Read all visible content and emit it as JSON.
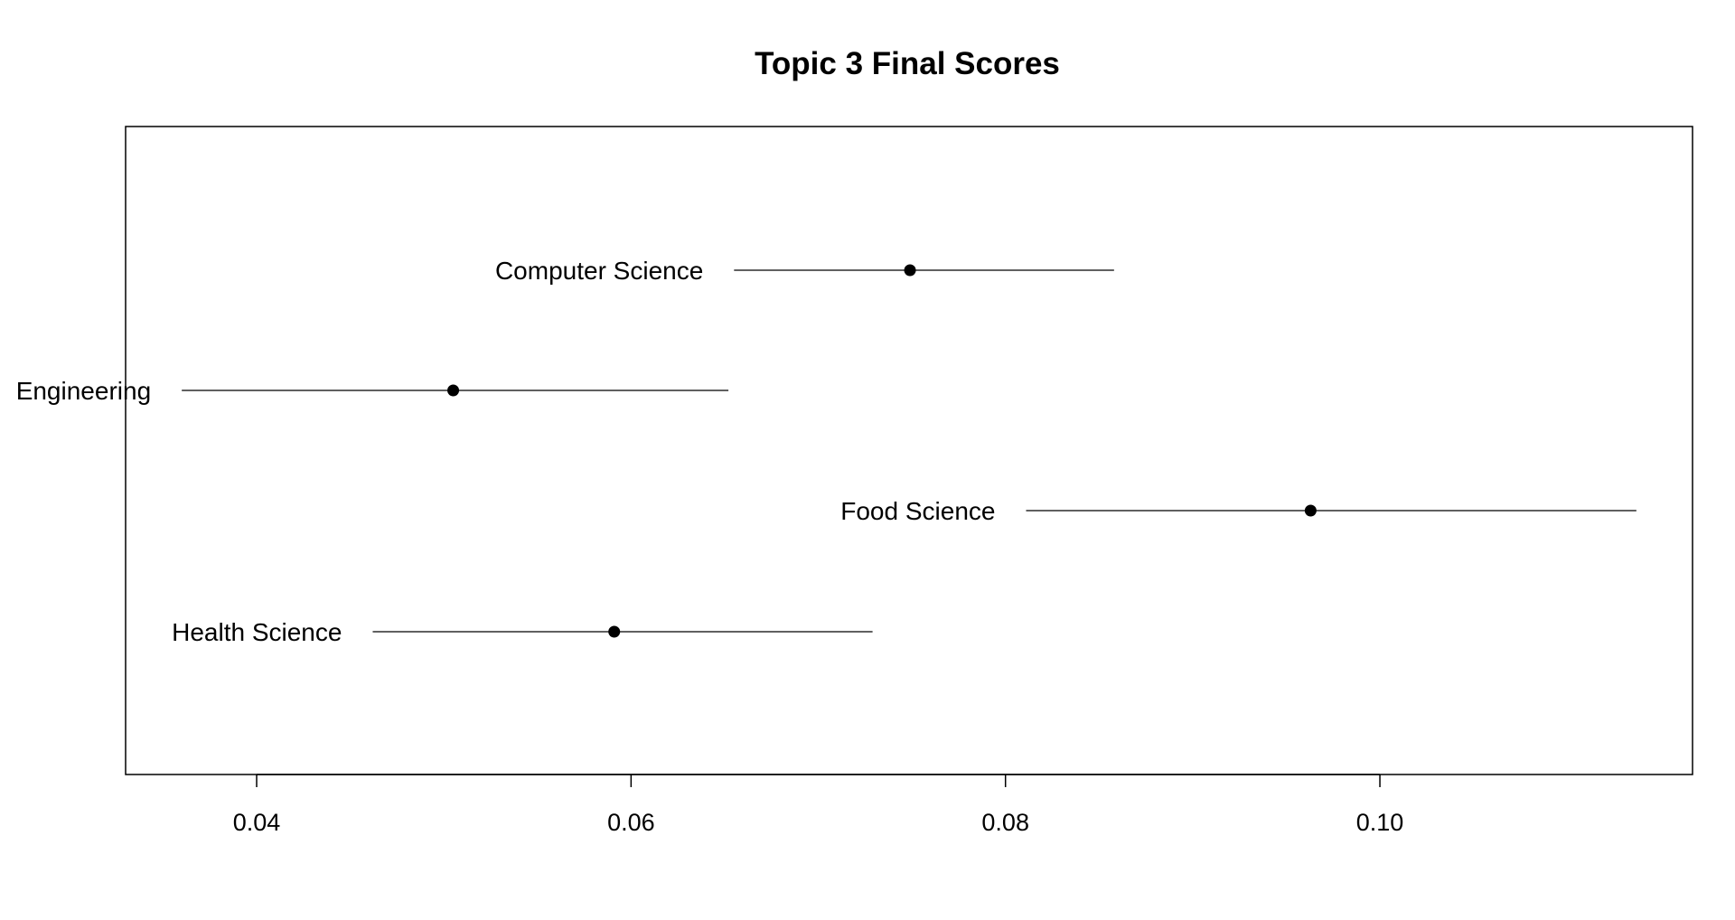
{
  "chart_data": {
    "type": "scatter",
    "title": "Topic 3 Final Scores",
    "xlabel": "",
    "ylabel": "",
    "xlim": [
      0.033,
      0.1167
    ],
    "grid": false,
    "legend": "none",
    "x_ticks": [
      0.04,
      0.06,
      0.08,
      0.1
    ],
    "x_tick_labels": [
      "0.04",
      "0.06",
      "0.08",
      "0.10"
    ],
    "points": [
      {
        "label": "Computer Science",
        "estimate": 0.0749,
        "lower": 0.0655,
        "upper": 0.0858
      },
      {
        "label": "Engineering",
        "estimate": 0.0505,
        "lower": 0.036,
        "upper": 0.0652
      },
      {
        "label": "Food Science",
        "estimate": 0.0963,
        "lower": 0.0811,
        "upper": 0.1137
      },
      {
        "label": "Health Science",
        "estimate": 0.0591,
        "lower": 0.0462,
        "upper": 0.0729
      }
    ],
    "colors": {
      "ink": "#000000",
      "background": "#ffffff"
    }
  }
}
